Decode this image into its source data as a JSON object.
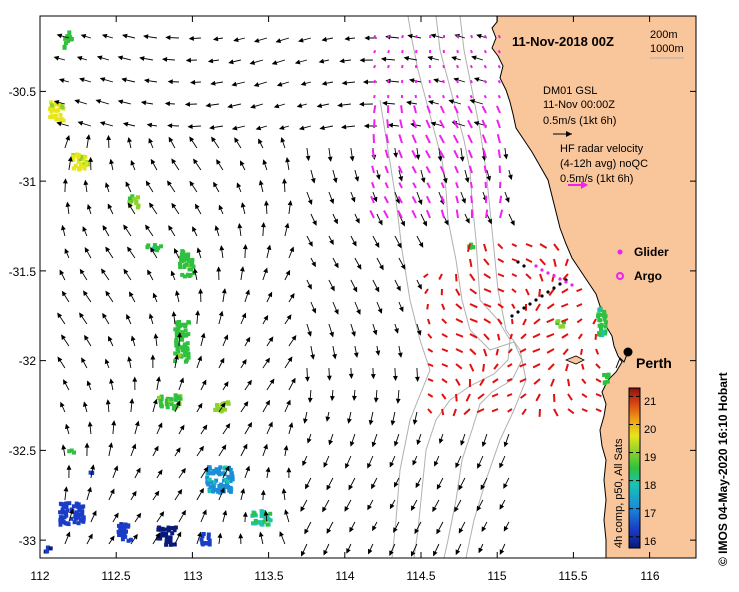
{
  "map": {
    "title": "11-Nov-2018 00Z",
    "xlim": [
      112,
      116.3
    ],
    "ylim": [
      -33.1,
      -30.08
    ],
    "x_ticks": [
      112,
      112.5,
      113,
      113.5,
      114,
      114.5,
      115,
      115.5,
      116
    ],
    "x_tick_labels": [
      "112",
      "112.5",
      "113",
      "113.5",
      "114",
      "114.5",
      "115",
      "115.5",
      "116"
    ],
    "y_ticks": [
      -30.5,
      -31,
      -31.5,
      -32,
      -32.5,
      -33
    ],
    "y_tick_labels": [
      "-30.5",
      "-31",
      "-31.5",
      "-32",
      "-32.5",
      "-33"
    ],
    "contour_labels": [
      "200m",
      "1000m"
    ],
    "colors": {
      "land": "#f9c59a",
      "bathymetry": "#b0b0b0",
      "model_vectors": "#000000",
      "hf_radar": "#e21010",
      "glider": "#ee22ee",
      "argo": "#ee22ee",
      "mooring": "#000000"
    }
  },
  "legend": {
    "model_name": "DM01 GSL",
    "model_time": "11-Nov 00:00Z",
    "model_scale": "0.5m/s (1kt 6h)",
    "radar_title": "HF radar velocity",
    "radar_avg": "(4-12h avg) noQC",
    "radar_scale": "0.5m/s (1kt 6h)",
    "glider_label": "Glider",
    "argo_label": "Argo"
  },
  "places": {
    "city": "Perth"
  },
  "colorbar": {
    "label": "4h comp, p50, All Sats",
    "min": 15.6,
    "max": 21.3,
    "ticks": [
      16,
      17,
      18,
      19,
      20,
      21
    ],
    "tick_labels": [
      "16",
      "17",
      "18",
      "19",
      "20",
      "21"
    ]
  },
  "credit": "© IMOS 04-May-2020 16:10 Hobart"
}
